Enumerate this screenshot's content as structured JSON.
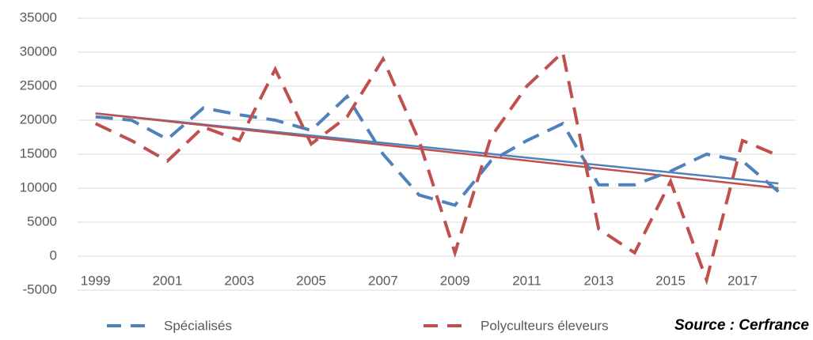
{
  "chart_data": {
    "type": "line",
    "categories": [
      "1999",
      null,
      "2001",
      null,
      "2003",
      null,
      "2005",
      null,
      "2007",
      null,
      "2009",
      null,
      "2011",
      null,
      "2013",
      null,
      "2015",
      null,
      "2017",
      null
    ],
    "series": [
      {
        "name": "Spécialisés",
        "color": "#4f81bd",
        "dashed": true,
        "values": [
          20500,
          20000,
          17200,
          21800,
          20800,
          20000,
          18500,
          23500,
          15000,
          9000,
          7500,
          14000,
          17000,
          19500,
          10500,
          10500,
          12500,
          15000,
          14000,
          9500
        ]
      },
      {
        "name": "Polyculteurs éleveurs",
        "color": "#c0504d",
        "dashed": true,
        "values": [
          19500,
          17000,
          14000,
          19000,
          17000,
          27500,
          16500,
          20500,
          29000,
          17000,
          500,
          17500,
          25000,
          30000,
          4000,
          500,
          11000,
          -3500,
          17000,
          14800
        ]
      }
    ],
    "trendlines": [
      {
        "color": "#4f81bd",
        "values": [
          21000,
          10700
        ]
      },
      {
        "color": "#c0504d",
        "values": [
          21000,
          10000
        ]
      }
    ],
    "ylim": [
      -5000,
      35000
    ],
    "yticks": [
      -5000,
      0,
      5000,
      10000,
      15000,
      20000,
      25000,
      30000,
      35000
    ],
    "grid": true,
    "legend": "bottom",
    "source": "Source : Cerfrance"
  }
}
